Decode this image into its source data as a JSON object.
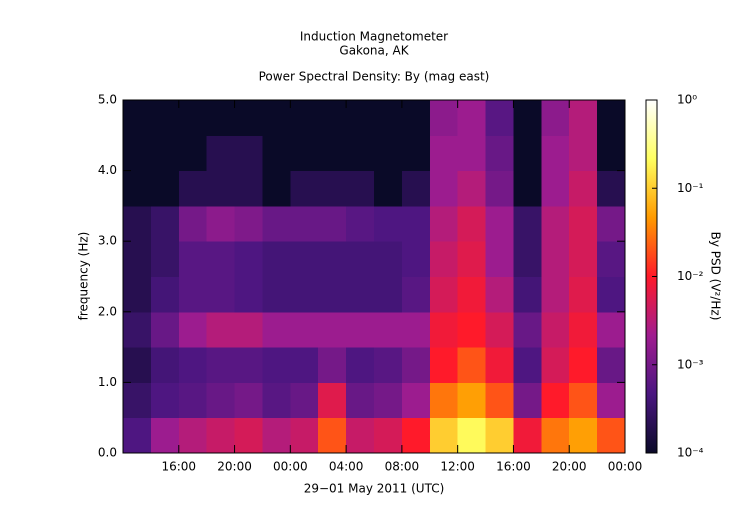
{
  "chart_data": {
    "type": "heatmap",
    "title": "Induction Magnetometer",
    "subtitle": "Gakona, AK",
    "plot_title": "Power Spectral Density: By (mag east)",
    "x_label": "29−01 May 2011 (UTC)",
    "y_label": "frequency (Hz)",
    "colorbar_label": "By PSD (V²/Hz)",
    "x_bins": [
      0,
      2,
      4,
      6,
      8,
      10,
      12,
      14,
      16,
      18,
      20,
      22,
      24,
      26,
      28,
      30,
      32,
      34,
      36
    ],
    "y_bins": [
      0,
      0.5,
      1,
      1.5,
      2,
      2.5,
      3,
      3.5,
      4,
      4.5,
      5
    ],
    "z": [
      [
        0.0005,
        0.002,
        0.003,
        0.004,
        0.005,
        0.003,
        0.004,
        0.02,
        0.004,
        0.005,
        0.01,
        0.1,
        0.2,
        0.1,
        0.008,
        0.03,
        0.05,
        0.02
      ],
      [
        0.0003,
        0.0005,
        0.0006,
        0.0008,
        0.001,
        0.0006,
        0.0008,
        0.006,
        0.0008,
        0.001,
        0.002,
        0.03,
        0.05,
        0.02,
        0.001,
        0.01,
        0.02,
        0.002
      ],
      [
        0.0002,
        0.0004,
        0.0005,
        0.0006,
        0.0006,
        0.0005,
        0.0005,
        0.001,
        0.0005,
        0.0006,
        0.001,
        0.01,
        0.02,
        0.008,
        0.0005,
        0.005,
        0.01,
        0.0008
      ],
      [
        0.0003,
        0.0008,
        0.002,
        0.003,
        0.003,
        0.002,
        0.002,
        0.002,
        0.002,
        0.002,
        0.002,
        0.008,
        0.01,
        0.005,
        0.0008,
        0.004,
        0.008,
        0.002
      ],
      [
        0.0002,
        0.0004,
        0.0006,
        0.0006,
        0.0005,
        0.0004,
        0.0004,
        0.0004,
        0.0004,
        0.0004,
        0.0006,
        0.005,
        0.008,
        0.003,
        0.0004,
        0.003,
        0.006,
        0.0005
      ],
      [
        0.0002,
        0.0003,
        0.0006,
        0.0006,
        0.0005,
        0.0004,
        0.0004,
        0.0004,
        0.0004,
        0.0004,
        0.0005,
        0.004,
        0.006,
        0.002,
        0.0003,
        0.003,
        0.005,
        0.0006
      ],
      [
        0.0002,
        0.0003,
        0.001,
        0.0015,
        0.0012,
        0.0008,
        0.0008,
        0.0008,
        0.0006,
        0.0005,
        0.0005,
        0.003,
        0.005,
        0.002,
        0.0003,
        0.003,
        0.005,
        0.001
      ],
      [
        0.0001,
        0.0001,
        0.0002,
        0.0002,
        0.0002,
        0.0001,
        0.0002,
        0.0002,
        0.0002,
        0.0001,
        0.0002,
        0.002,
        0.003,
        0.001,
        0.0001,
        0.002,
        0.004,
        0.0002
      ],
      [
        0.0001,
        0.0001,
        0.0001,
        0.0002,
        0.0002,
        0.0001,
        0.0001,
        0.0001,
        0.0001,
        0.0001,
        0.0001,
        0.002,
        0.002,
        0.0008,
        0.0001,
        0.002,
        0.003,
        0.0001
      ],
      [
        0.0001,
        0.0001,
        0.0001,
        0.0001,
        0.0001,
        0.0001,
        0.0001,
        0.0001,
        0.0001,
        0.0001,
        0.0001,
        0.0015,
        0.002,
        0.0006,
        0.0001,
        0.0015,
        0.003,
        0.0001
      ]
    ],
    "xlim": [
      0,
      36
    ],
    "xticks": [
      {
        "value": 4,
        "label": "16:00"
      },
      {
        "value": 8,
        "label": "20:00"
      },
      {
        "value": 12,
        "label": "00:00"
      },
      {
        "value": 16,
        "label": "04:00"
      },
      {
        "value": 20,
        "label": "08:00"
      },
      {
        "value": 24,
        "label": "12:00"
      },
      {
        "value": 28,
        "label": "16:00"
      },
      {
        "value": 32,
        "label": "20:00"
      },
      {
        "value": 36,
        "label": "00:00"
      }
    ],
    "ylim": [
      0,
      5
    ],
    "yticks": [
      {
        "value": 0,
        "label": "0.0"
      },
      {
        "value": 1,
        "label": "1.0"
      },
      {
        "value": 2,
        "label": "2.0"
      },
      {
        "value": 3,
        "label": "3.0"
      },
      {
        "value": 4,
        "label": "4.0"
      },
      {
        "value": 5,
        "label": "5.0"
      }
    ],
    "clim": [
      0.0001,
      1
    ],
    "cticks": [
      {
        "value": 0.0001,
        "label": "10⁻⁴"
      },
      {
        "value": 0.001,
        "label": "10⁻³"
      },
      {
        "value": 0.01,
        "label": "10⁻²"
      },
      {
        "value": 0.1,
        "label": "10⁻¹"
      },
      {
        "value": 1,
        "label": "10⁰"
      }
    ],
    "color_log_scale": true,
    "colormap": [
      "#0a0a28",
      "#4a1680",
      "#a01c90",
      "#ff1a2a",
      "#ff9a00",
      "#ffff60",
      "#ffffff"
    ]
  }
}
